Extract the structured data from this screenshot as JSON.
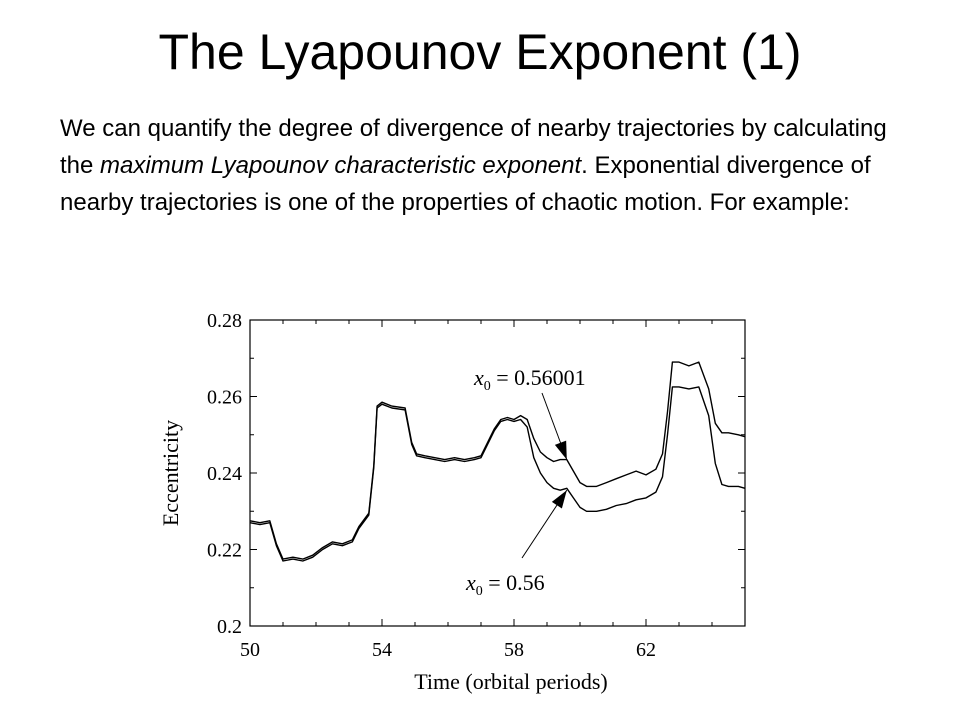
{
  "slide": {
    "title": "The Lyapounov Exponent (1)",
    "paragraph": {
      "part1": "We can quantify the degree of divergence of nearby trajectories by calculating the ",
      "emphasis": "maximum Lyapounov characteristic exponent",
      "part2": ".  Exponential divergence of nearby trajectories is one of the properties of chaotic motion.  For example:"
    }
  },
  "chart_data": {
    "type": "line",
    "title": "",
    "xlabel": "Time (orbital periods)",
    "ylabel": "Eccentricity",
    "xlim": [
      50,
      65
    ],
    "ylim": [
      0.2,
      0.28
    ],
    "xticks": [
      50,
      54,
      58,
      62
    ],
    "yticks": [
      0.2,
      0.22,
      0.24,
      0.26,
      0.28
    ],
    "ytick_labels": [
      "0.2",
      "0.22",
      "0.24",
      "0.26",
      "0.28"
    ],
    "grid": false,
    "annotations": [
      {
        "var": "x",
        "sub": "0",
        "text": " = 0.56001",
        "points_to_x": 59.6,
        "points_to_y": 0.2435
      },
      {
        "var": "x",
        "sub": "0",
        "text": " = 0.56",
        "points_to_x": 59.6,
        "points_to_y": 0.2355
      }
    ],
    "series": [
      {
        "x": [
          50.0,
          50.3,
          50.6,
          50.8,
          51.0,
          51.3,
          51.6,
          51.9,
          52.2,
          52.5,
          52.8,
          53.1,
          53.3,
          53.6,
          53.75,
          53.85,
          54.0,
          54.3,
          54.7,
          54.9,
          55.05,
          55.3,
          55.6,
          55.9,
          56.2,
          56.5,
          56.8,
          57.0,
          57.2,
          57.4,
          57.6,
          57.8,
          58.0,
          58.2,
          58.4,
          58.6,
          58.8,
          59.0,
          59.2,
          59.4,
          59.6,
          59.8,
          60.0,
          60.2,
          60.5,
          60.8,
          61.1,
          61.4,
          61.7,
          62.0,
          62.3,
          62.5,
          62.65,
          62.8,
          63.0,
          63.3,
          63.6,
          63.9,
          64.1,
          64.3,
          64.5,
          64.8,
          65.0
        ],
        "y": [
          0.2275,
          0.227,
          0.2275,
          0.2215,
          0.2175,
          0.218,
          0.2175,
          0.2185,
          0.2205,
          0.222,
          0.2215,
          0.2225,
          0.226,
          0.2295,
          0.242,
          0.2575,
          0.2585,
          0.2575,
          0.257,
          0.248,
          0.245,
          0.2445,
          0.244,
          0.2435,
          0.244,
          0.2435,
          0.244,
          0.2445,
          0.248,
          0.2515,
          0.254,
          0.2545,
          0.254,
          0.255,
          0.254,
          0.249,
          0.2455,
          0.244,
          0.243,
          0.2435,
          0.2435,
          0.2405,
          0.2375,
          0.2365,
          0.2365,
          0.2375,
          0.2385,
          0.2395,
          0.2405,
          0.2395,
          0.241,
          0.245,
          0.256,
          0.269,
          0.269,
          0.268,
          0.269,
          0.262,
          0.253,
          0.2505,
          0.2505,
          0.25,
          0.2495
        ]
      },
      {
        "x": [
          50.0,
          50.3,
          50.6,
          50.8,
          51.0,
          51.3,
          51.6,
          51.9,
          52.2,
          52.5,
          52.8,
          53.1,
          53.3,
          53.6,
          53.75,
          53.85,
          54.0,
          54.3,
          54.7,
          54.9,
          55.05,
          55.3,
          55.6,
          55.9,
          56.2,
          56.5,
          56.8,
          57.0,
          57.2,
          57.4,
          57.6,
          57.8,
          58.0,
          58.2,
          58.4,
          58.6,
          58.8,
          59.0,
          59.2,
          59.4,
          59.6,
          59.8,
          60.0,
          60.2,
          60.5,
          60.8,
          61.1,
          61.4,
          61.7,
          62.0,
          62.3,
          62.5,
          62.65,
          62.8,
          63.0,
          63.3,
          63.6,
          63.9,
          64.1,
          64.3,
          64.5,
          64.8,
          65.0
        ],
        "y": [
          0.227,
          0.2265,
          0.227,
          0.221,
          0.217,
          0.2175,
          0.217,
          0.218,
          0.22,
          0.2215,
          0.221,
          0.222,
          0.2255,
          0.229,
          0.2415,
          0.257,
          0.258,
          0.257,
          0.2565,
          0.2475,
          0.2445,
          0.244,
          0.2435,
          0.243,
          0.2435,
          0.243,
          0.2435,
          0.244,
          0.2475,
          0.251,
          0.2535,
          0.254,
          0.2535,
          0.254,
          0.252,
          0.244,
          0.24,
          0.2375,
          0.236,
          0.2355,
          0.236,
          0.2335,
          0.231,
          0.23,
          0.23,
          0.2305,
          0.2315,
          0.232,
          0.233,
          0.2335,
          0.235,
          0.239,
          0.25,
          0.2625,
          0.2625,
          0.262,
          0.2625,
          0.255,
          0.2425,
          0.237,
          0.2365,
          0.2365,
          0.236
        ]
      }
    ]
  }
}
